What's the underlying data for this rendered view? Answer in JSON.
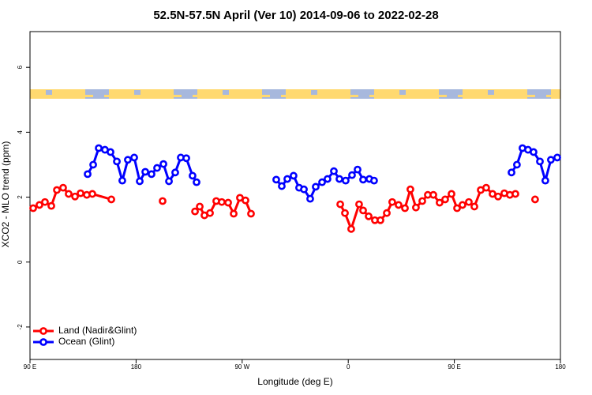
{
  "chart_data": {
    "type": "line",
    "title": "52.5N-57.5N April (Ver 10)   2014-09-06 to 2022-02-28",
    "x_label": "Longitude (deg E)",
    "y_label": "XCO2 - MLO trend (ppm)",
    "xlim": [
      90,
      540
    ],
    "xticks": [
      {
        "value": 90,
        "label": "90 E"
      },
      180,
      {
        "value": 270,
        "label": "90 W"
      },
      {
        "value": 360,
        "label": "0"
      },
      {
        "value": 450,
        "label": "90 E"
      },
      180
    ],
    "ylim": [
      -3,
      7.1
    ],
    "yticks": [
      -2,
      0,
      2,
      4,
      6
    ],
    "legend": "bottom-left",
    "series": [
      {
        "name": "Land (Nadir&Glint)",
        "color": "#ff0000",
        "x": [
          92.7,
          98.0,
          102.7,
          108.1,
          112.8,
          118.1,
          122.8,
          128.2,
          132.9,
          138.2,
          142.9,
          159.0,
          null,
          202.5,
          null,
          230,
          234,
          238,
          242.7,
          248,
          252.7,
          258.1,
          262.8,
          268.1,
          272.8,
          277.5,
          null,
          353.2,
          357.2,
          362.5,
          369.2,
          372.6,
          377.3,
          382.6,
          387.3,
          392.7,
          397.3,
          402.7,
          408.1,
          412.7,
          417.4,
          422.8,
          427.5,
          432.2,
          437.5,
          442.2,
          447.6,
          452.3,
          456.9,
          462.3,
          467,
          472.4,
          477,
          482.4,
          487.1,
          492.4,
          497.1,
          501.8,
          null,
          518.5
        ],
        "values": [
          1.66,
          1.76,
          1.85,
          1.73,
          2.22,
          2.29,
          2.1,
          2.02,
          2.12,
          2.07,
          2.1,
          1.93,
          null,
          1.88,
          null,
          1.56,
          1.71,
          1.44,
          1.51,
          1.88,
          1.85,
          1.83,
          1.49,
          1.98,
          1.9,
          1.49,
          null,
          1.78,
          1.51,
          1.02,
          1.78,
          1.59,
          1.41,
          1.29,
          1.29,
          1.51,
          1.85,
          1.76,
          1.66,
          2.24,
          1.68,
          1.88,
          2.07,
          2.07,
          1.83,
          1.93,
          2.1,
          1.66,
          1.76,
          1.85,
          1.71,
          2.22,
          2.29,
          2.1,
          2.02,
          2.12,
          2.07,
          2.1,
          null,
          1.93
        ]
      },
      {
        "name": "Ocean (Glint)",
        "color": "#0000ff",
        "x": [
          138.9,
          143.6,
          148.3,
          153.6,
          158.3,
          163.7,
          168.3,
          173.0,
          178.4,
          183.1,
          187.8,
          193.1,
          197.8,
          203.2,
          207.9,
          213.2,
          217.9,
          222.6,
          227.9,
          231.3,
          null,
          298.9,
          303.6,
          308.3,
          313.6,
          318.3,
          322.4,
          327.7,
          332.4,
          337.8,
          342.4,
          347.8,
          352.5,
          357.8,
          363.2,
          367.9,
          372.6,
          377.9,
          381.9,
          null,
          498.5,
          503.1,
          507.8,
          512.5,
          517.2,
          522.6,
          527.2,
          531.9,
          537.3
        ],
        "values": [
          2.71,
          3.0,
          3.51,
          3.46,
          3.39,
          3.1,
          2.51,
          3.15,
          3.22,
          2.49,
          2.78,
          2.71,
          2.9,
          3.02,
          2.49,
          2.76,
          3.22,
          3.2,
          2.66,
          2.46,
          null,
          2.54,
          2.34,
          2.56,
          2.66,
          2.29,
          2.24,
          1.95,
          2.32,
          2.46,
          2.56,
          2.8,
          2.56,
          2.51,
          2.68,
          2.85,
          2.54,
          2.56,
          2.51,
          null,
          2.76,
          3.0,
          3.51,
          3.46,
          3.39,
          3.1,
          2.51,
          3.15,
          3.22
        ]
      }
    ]
  }
}
